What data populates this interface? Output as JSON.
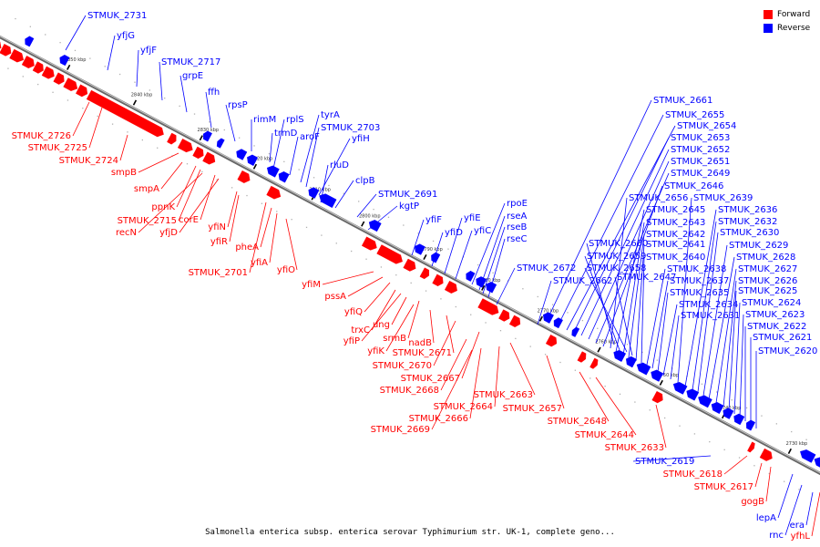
{
  "caption": "Salmonella enterica subsp. enterica serovar Typhimurium str. UK-1, complete geno...",
  "legend": [
    {
      "label": "Forward",
      "color": "#ff0000"
    },
    {
      "label": "Reverse",
      "color": "#0000ff"
    }
  ],
  "colors": {
    "forward": "#ff0000",
    "reverse": "#0000ff",
    "backbone": "#888888"
  },
  "scale_ticks": [
    "2850 kbp",
    "2840 kbp",
    "2830 kbp",
    "2820 kbp",
    "2810 kbp",
    "2800 kbp",
    "2790 kbp",
    "2780 kbp",
    "2770 kbp",
    "2760 kbp",
    "2750 kbp",
    "2740 kbp",
    "2730 kbp"
  ],
  "reverse_genes": [
    "STMUK_2731",
    "yfjG",
    "yfjF",
    "STMUK_2717",
    "grpE",
    "ffh",
    "rpsP",
    "rimM",
    "trmD",
    "rplS",
    "aroF",
    "tyrA",
    "STMUK_2703",
    "yfiH",
    "rluD",
    "clpB",
    "STMUK_2691",
    "kgtP",
    "yfiF",
    "yfiD",
    "yfiE",
    "yfiC",
    "rpoE",
    "rseA",
    "rseB",
    "rseC",
    "STMUK_2672",
    "STMUK_2662",
    "STMUK_2661",
    "STMUK_2655",
    "STMUK_2654",
    "STMUK_2653",
    "STMUK_2652",
    "STMUK_2651",
    "STMUK_2649",
    "STMUK_2646",
    "STMUK_2656",
    "STMUK_2645",
    "STMUK_2643",
    "STMUK_2642",
    "STMUK_2641",
    "STMUK_2640",
    "STMUK_2638",
    "STMUK_2637",
    "STMUK_2635",
    "STMUK_2634",
    "STMUK_2631",
    "STMUK_2639",
    "STMUK_2636",
    "STMUK_2632",
    "STMUK_2630",
    "STMUK_2629",
    "STMUK_2628",
    "STMUK_2627",
    "STMUK_2626",
    "STMUK_2625",
    "STMUK_2624",
    "STMUK_2623",
    "STMUK_2622",
    "STMUK_2621",
    "STMUK_2620",
    "STMUK_2659",
    "STMUK_2658",
    "STMUK_2660",
    "STMUK_2647",
    "STMUK_2619",
    "lepA",
    "rnc",
    "era"
  ],
  "forward_genes": [
    "STMUK_2726",
    "STMUK_2725",
    "STMUK_2724",
    "smpB",
    "smpA",
    "ppnK",
    "STMUK_2715",
    "recN",
    "corE",
    "yfjD",
    "yfiN",
    "yfiR",
    "pheA",
    "yfiA",
    "yfiO",
    "STMUK_2701",
    "yfiM",
    "pssA",
    "yfiQ",
    "trxC",
    "yfiP",
    "ung",
    "srmB",
    "yfiK",
    "nadB",
    "STMUK_2671",
    "STMUK_2670",
    "STMUK_2667",
    "STMUK_2668",
    "STMUK_2663",
    "STMUK_2664",
    "STMUK_2657",
    "STMUK_2666",
    "STMUK_2669",
    "STMUK_2648",
    "STMUK_2644",
    "STMUK_2633",
    "STMUK_2618",
    "STMUK_2617",
    "gogB",
    "yfhL"
  ]
}
